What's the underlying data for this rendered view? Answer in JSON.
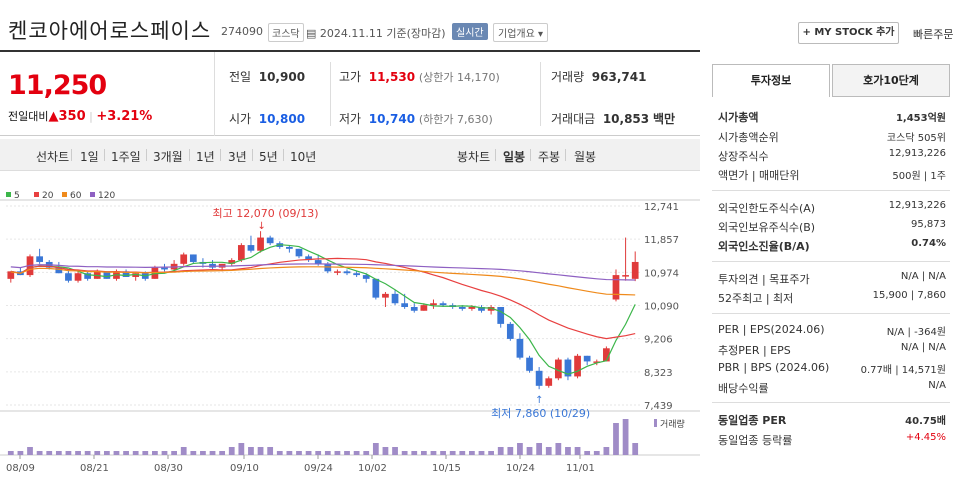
{
  "header": {
    "title": "켄코아에어로스페이스",
    "code": "274090",
    "market": "코스닥",
    "date": "2024.11.11",
    "basis": "기준(장마감)",
    "live": "실시간",
    "company": "기업개요",
    "mystock": "+ MY STOCK 추가",
    "quick": "빠른주문"
  },
  "price": {
    "now": "11,250",
    "change_label": "전일대비",
    "change": "▲350",
    "rate": "+3.21%"
  },
  "quotes": {
    "prev_label": "전일",
    "prev": "10,900",
    "high_label": "고가",
    "high": "11,530",
    "upper": "(상한가 14,170)",
    "vol_label": "거래량",
    "vol": "963,741",
    "open_label": "시가",
    "open": "10,800",
    "low_label": "저가",
    "low": "10,740",
    "lower": "(하한가 7,630)",
    "amt_label": "거래대금",
    "amt": "10,853",
    "amt_unit": "백만"
  },
  "periods": {
    "line": "선차트",
    "d1": "1일",
    "w1": "1주일",
    "m3": "3개월",
    "y1": "1년",
    "y3": "3년",
    "y5": "5년",
    "y10": "10년",
    "candle": "봉차트",
    "daily": "일봉",
    "weekly": "주봉",
    "monthly": "월봉"
  },
  "chart_data": {
    "type": "candlestick",
    "legend": [
      {
        "name": "5",
        "color": "#3cb64a"
      },
      {
        "name": "20",
        "color": "#e84040"
      },
      {
        "name": "60",
        "color": "#ef8a1b"
      },
      {
        "name": "120",
        "color": "#8e60c2"
      }
    ],
    "yticks": [
      "12,741",
      "11,857",
      "10,974",
      "10,090",
      "9,206",
      "8,323",
      "7,439"
    ],
    "xticks": [
      "08/09",
      "08/21",
      "08/30",
      "09/10",
      "09/24",
      "10/02",
      "10/15",
      "10/24",
      "11/01"
    ],
    "high_note": "최고 12,070 (09/13)",
    "low_note": "최저 7,860 (10/29)",
    "volume_label": "거래량",
    "candles": [
      [
        10800,
        11000,
        10700,
        11000
      ],
      [
        11000,
        11100,
        10900,
        10900
      ],
      [
        10900,
        11450,
        10850,
        11400
      ],
      [
        11400,
        11600,
        11200,
        11250
      ],
      [
        11250,
        11300,
        11050,
        11100
      ],
      [
        11100,
        11250,
        10950,
        10950
      ],
      [
        10950,
        11050,
        10700,
        10750
      ],
      [
        10750,
        11050,
        10700,
        10950
      ],
      [
        10950,
        11000,
        10750,
        10800
      ],
      [
        10800,
        11050,
        10800,
        11000
      ],
      [
        11000,
        11000,
        10800,
        10800
      ],
      [
        10800,
        11050,
        10750,
        11000
      ],
      [
        11000,
        11050,
        10850,
        10850
      ],
      [
        10850,
        10950,
        10750,
        10950
      ],
      [
        10950,
        11000,
        10750,
        10800
      ],
      [
        10800,
        11150,
        10800,
        11100
      ],
      [
        11100,
        11200,
        11000,
        11050
      ],
      [
        11050,
        11300,
        11000,
        11200
      ],
      [
        11200,
        11500,
        11150,
        11450
      ],
      [
        11450,
        11450,
        11200,
        11250
      ],
      [
        11250,
        11350,
        11100,
        11200
      ],
      [
        11200,
        11300,
        11050,
        11100
      ],
      [
        11100,
        11200,
        11000,
        11200
      ],
      [
        11200,
        11350,
        11150,
        11300
      ],
      [
        11300,
        11750,
        11250,
        11700
      ],
      [
        11700,
        11950,
        11500,
        11550
      ],
      [
        11550,
        12070,
        11500,
        11900
      ],
      [
        11900,
        11950,
        11700,
        11750
      ],
      [
        11750,
        11800,
        11600,
        11650
      ],
      [
        11650,
        11700,
        11500,
        11600
      ],
      [
        11600,
        11600,
        11350,
        11400
      ],
      [
        11400,
        11450,
        11250,
        11300
      ],
      [
        11300,
        11450,
        11150,
        11200
      ],
      [
        11200,
        11250,
        10950,
        11000
      ],
      [
        11000,
        11050,
        10900,
        11000
      ],
      [
        11000,
        11050,
        10900,
        10950
      ],
      [
        10950,
        11000,
        10850,
        10900
      ],
      [
        10900,
        10950,
        10700,
        10800
      ],
      [
        10800,
        10800,
        10250,
        10300
      ],
      [
        10300,
        10450,
        10050,
        10400
      ],
      [
        10400,
        10500,
        10100,
        10150
      ],
      [
        10150,
        10400,
        10000,
        10050
      ],
      [
        10050,
        10150,
        9900,
        9950
      ],
      [
        9950,
        10150,
        9950,
        10100
      ],
      [
        10100,
        10250,
        10000,
        10150
      ],
      [
        10150,
        10200,
        10050,
        10100
      ],
      [
        10100,
        10150,
        10000,
        10050
      ],
      [
        10050,
        10100,
        9950,
        10000
      ],
      [
        10000,
        10100,
        9950,
        10050
      ],
      [
        10050,
        10100,
        9900,
        9950
      ],
      [
        9950,
        10100,
        9850,
        10050
      ],
      [
        10050,
        10050,
        9500,
        9600
      ],
      [
        9600,
        9650,
        9150,
        9200
      ],
      [
        9200,
        9350,
        8650,
        8700
      ],
      [
        8700,
        8750,
        8300,
        8350
      ],
      [
        8350,
        8450,
        7860,
        7950
      ],
      [
        7950,
        8200,
        7900,
        8150
      ],
      [
        8150,
        8700,
        8100,
        8650
      ],
      [
        8650,
        8700,
        8100,
        8200
      ],
      [
        8200,
        8800,
        8150,
        8750
      ],
      [
        8750,
        8750,
        8500,
        8600
      ],
      [
        8600,
        8650,
        8500,
        8600
      ],
      [
        8600,
        9000,
        8600,
        8950
      ],
      [
        10250,
        11050,
        10200,
        10900
      ],
      [
        10900,
        11900,
        10750,
        10900
      ],
      [
        10800,
        11530,
        10740,
        11250
      ]
    ],
    "volumes": [
      1,
      1,
      2,
      1,
      1,
      1,
      1,
      1,
      1,
      1,
      1,
      1,
      1,
      1,
      1,
      1,
      1,
      1,
      2,
      1,
      1,
      1,
      1,
      2,
      3,
      2,
      2,
      2,
      1,
      1,
      1,
      1,
      1,
      1,
      1,
      1,
      1,
      1,
      3,
      2,
      2,
      1,
      1,
      1,
      1,
      1,
      1,
      1,
      1,
      1,
      1,
      2,
      2,
      3,
      2,
      3,
      2,
      3,
      2,
      2,
      1,
      1,
      2,
      8,
      9,
      3
    ]
  },
  "side": {
    "tab1": "투자정보",
    "tab2": "호가10단계",
    "rows": [
      {
        "l": "시가총액",
        "r": "1,453억원"
      },
      {
        "l": "시가총액순위",
        "r": "코스닥 505위"
      },
      {
        "l": "상장주식수",
        "r": "12,913,226"
      },
      {
        "l": "액면가 | 매매단위",
        "r": "500원 | 1주"
      },
      {
        "l": "외국인한도주식수(A)",
        "r": "12,913,226"
      },
      {
        "l": "외국인보유주식수(B)",
        "r": "95,873"
      },
      {
        "l": "외국인소진율(B/A)",
        "r": "0.74%"
      },
      {
        "l": "투자의견 | 목표주가",
        "r": "N/A | N/A"
      },
      {
        "l": "52주최고 | 최저",
        "r": "15,900 | 7,860"
      },
      {
        "l": "PER | EPS(2024.06)",
        "r": "N/A | -364원"
      },
      {
        "l": "추정PER | EPS",
        "r": "N/A | N/A"
      },
      {
        "l": "PBR | BPS (2024.06)",
        "r": "0.77배 | 14,571원"
      },
      {
        "l": "배당수익률",
        "r": "N/A"
      },
      {
        "l": "동일업종 PER",
        "r": "40.75배"
      },
      {
        "l": "동일업종 등락률",
        "r": "+4.45%"
      }
    ]
  }
}
